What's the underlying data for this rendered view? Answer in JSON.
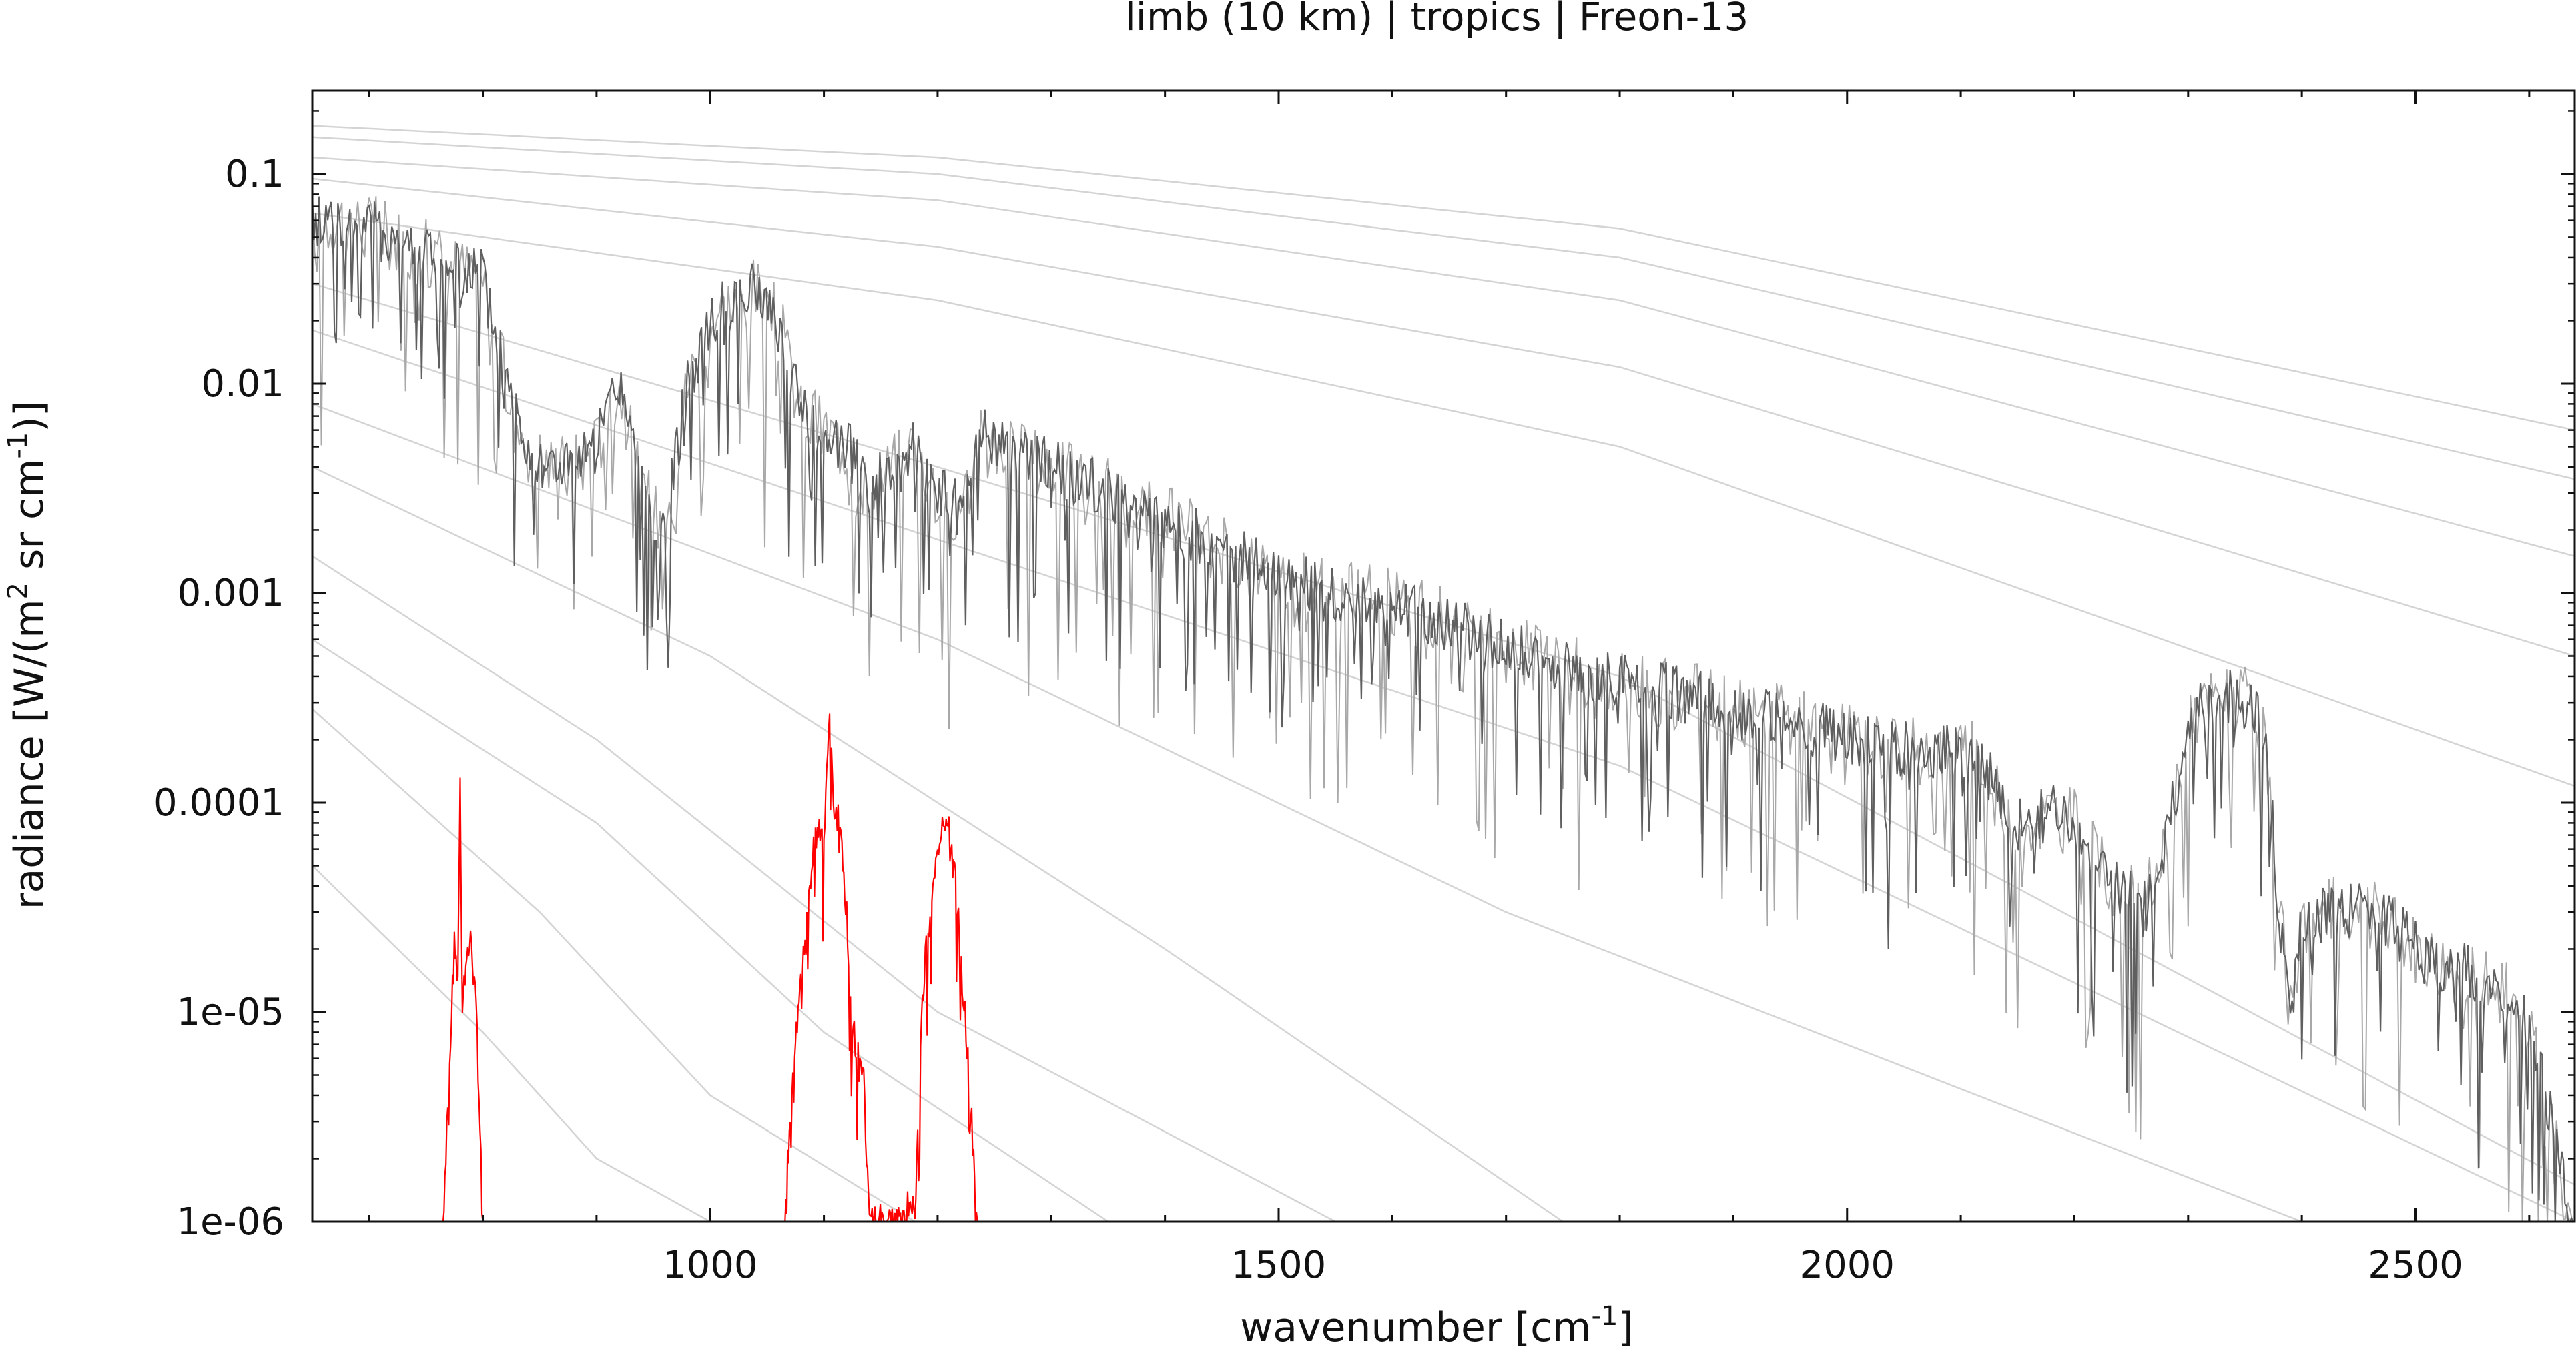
{
  "chart_data": {
    "type": "line",
    "title": "limb (10 km) | tropics | Freon-13",
    "xlabel": {
      "main": "wavenumber [cm",
      "sup": "-1",
      "end": "]"
    },
    "ylabel": {
      "p1": "radiance [W/(m",
      "s1": "2",
      "p2": " sr cm",
      "s2": "-1",
      "p3": ")]"
    },
    "xlim": [
      650,
      2640
    ],
    "ylim": [
      1e-06,
      0.25
    ],
    "yscale": "log",
    "xticks": [
      1000,
      1500,
      2000,
      2500
    ],
    "xtick_labels": [
      "1000",
      "1500",
      "2000",
      "2500"
    ],
    "yticks": [
      0.1,
      0.01,
      0.001,
      0.0001,
      1e-05,
      1e-06
    ],
    "ytick_labels": [
      "0.1",
      "0.01",
      "0.001",
      "0.0001",
      "1e-05",
      "1e-06"
    ],
    "grid": false,
    "colors": {
      "total": "#5f5f5f",
      "total_light": "#a8a8a8",
      "gas": "#ff0000",
      "reference": "#d4d4d4"
    },
    "series": [
      {
        "x": [
          650,
          680,
          700,
          720,
          740,
          760,
          780,
          800,
          820,
          840,
          860,
          880,
          900,
          920,
          940,
          960,
          980,
          1000,
          1020,
          1040,
          1060,
          1080,
          1100,
          1120,
          1140,
          1160,
          1180,
          1200,
          1220,
          1240,
          1260,
          1280,
          1300,
          1350,
          1400,
          1450,
          1500,
          1550,
          1600,
          1650,
          1700,
          1750,
          1800,
          1850,
          1900,
          1950,
          2000,
          2050,
          2100,
          2120,
          2140,
          2160,
          2180,
          2200,
          2220,
          2240,
          2260,
          2280,
          2300,
          2320,
          2340,
          2360,
          2370,
          2380,
          2390,
          2400,
          2420,
          2440,
          2460,
          2480,
          2500,
          2520,
          2540,
          2560,
          2580,
          2600,
          2610,
          2620,
          2630,
          2640
        ],
        "y": [
          0.06,
          0.062,
          0.055,
          0.05,
          0.045,
          0.04,
          0.035,
          0.033,
          0.01,
          0.005,
          0.004,
          0.004,
          0.005,
          0.01,
          0.003,
          0.002,
          0.01,
          0.02,
          0.025,
          0.028,
          0.02,
          0.007,
          0.006,
          0.005,
          0.003,
          0.004,
          0.005,
          0.003,
          0.0025,
          0.0055,
          0.005,
          0.0045,
          0.004,
          0.003,
          0.0022,
          0.0016,
          0.0012,
          0.001,
          0.0009,
          0.0007,
          0.00055,
          0.00045,
          0.00038,
          0.00033,
          0.00028,
          0.00024,
          0.0002,
          0.00018,
          0.00017,
          0.00016,
          8e-05,
          8e-05,
          9e-05,
          8e-05,
          5e-05,
          4e-05,
          3e-05,
          6e-05,
          0.00025,
          0.0003,
          0.00032,
          0.00028,
          0.00015,
          3e-05,
          1e-05,
          2.5e-05,
          3e-05,
          3.1e-05,
          3e-05,
          2.6e-05,
          2e-05,
          1.7e-05,
          1.6e-05,
          1.4e-05,
          1.2e-05,
          8e-06,
          5e-06,
          3e-06,
          1.5e-06,
          1e-06
        ]
      },
      {
        "x": [
          765,
          770,
          775,
          778,
          780,
          782,
          785,
          790,
          795,
          800,
          1065,
          1075,
          1085,
          1090,
          1095,
          1100,
          1105,
          1110,
          1115,
          1120,
          1125,
          1130,
          1135,
          1140,
          1172,
          1176,
          1180,
          1185,
          1190,
          1195,
          1200,
          1205,
          1210,
          1215,
          1220,
          1225,
          1230,
          1235
        ],
        "y": [
          1e-06,
          5e-06,
          2e-05,
          1.5e-05,
          0.00014,
          1e-05,
          1.8e-05,
          2.2e-05,
          8e-06,
          1e-06,
          1e-06,
          8e-06,
          2.5e-05,
          6e-05,
          7e-05,
          7e-05,
          0.00025,
          8e-05,
          8e-05,
          3e-05,
          8e-06,
          7e-06,
          5e-06,
          1e-06,
          1e-06,
          1.5e-06,
          1e-06,
          8e-06,
          2e-05,
          4e-05,
          6e-05,
          9e-05,
          7e-05,
          4.5e-05,
          2e-05,
          8e-06,
          3e-06,
          1e-06
        ]
      }
    ],
    "reference_curves": [
      {
        "x": [
          650,
          1200,
          1800,
          2640
        ],
        "y": [
          0.17,
          0.12,
          0.055,
          0.006
        ]
      },
      {
        "x": [
          650,
          1200,
          1800,
          2640
        ],
        "y": [
          0.15,
          0.1,
          0.04,
          0.0035
        ]
      },
      {
        "x": [
          650,
          1200,
          1800,
          2640
        ],
        "y": [
          0.12,
          0.075,
          0.025,
          0.0015
        ]
      },
      {
        "x": [
          650,
          1200,
          1800,
          2640
        ],
        "y": [
          0.095,
          0.045,
          0.012,
          0.0005
        ]
      },
      {
        "x": [
          650,
          1200,
          1800,
          2640
        ],
        "y": [
          0.065,
          0.025,
          0.005,
          0.00012
        ]
      },
      {
        "x": [
          650,
          1200,
          1800,
          2640
        ],
        "y": [
          0.03,
          0.004,
          0.0004,
          1.5e-06
        ]
      },
      {
        "x": [
          650,
          1200,
          1800,
          2640
        ],
        "y": [
          0.018,
          0.0018,
          0.00015,
          1e-06
        ]
      },
      {
        "x": [
          650,
          1200,
          1700,
          2400
        ],
        "y": [
          0.008,
          0.0006,
          3e-05,
          1e-06
        ]
      },
      {
        "x": [
          650,
          1000,
          1400,
          1750
        ],
        "y": [
          0.004,
          0.0005,
          2e-05,
          1e-06
        ]
      },
      {
        "x": [
          650,
          900,
          1200,
          1550
        ],
        "y": [
          0.0015,
          0.0002,
          1e-05,
          1e-06
        ]
      },
      {
        "x": [
          650,
          900,
          1100,
          1350
        ],
        "y": [
          0.0006,
          8e-05,
          8e-06,
          1e-06
        ]
      },
      {
        "x": [
          650,
          850,
          1000,
          1180
        ],
        "y": [
          0.00028,
          3e-05,
          4e-06,
          1e-06
        ]
      },
      {
        "x": [
          650,
          800,
          900,
          1000
        ],
        "y": [
          5e-05,
          8e-06,
          2e-06,
          1e-06
        ]
      }
    ]
  }
}
